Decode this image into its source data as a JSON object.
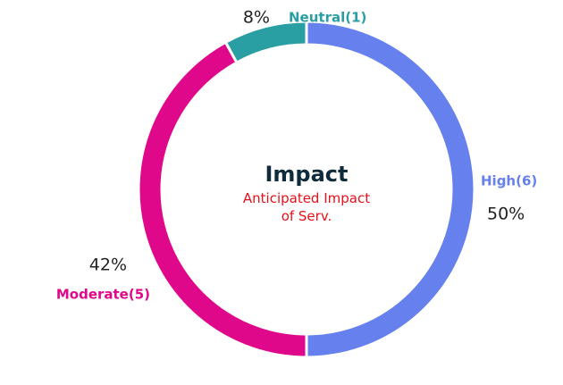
{
  "chart_data": {
    "type": "donut",
    "title": "Impact",
    "subtitle": "Anticipated Impact of Serv.",
    "categories": [
      "High(6)",
      "Moderate(5)",
      "Neutral(1)"
    ],
    "values": [
      50,
      42,
      8
    ],
    "value_labels": [
      "50%",
      "42%",
      "8%"
    ],
    "colors": [
      "#6680ee",
      "#e0088a",
      "#2a9fa3"
    ]
  }
}
